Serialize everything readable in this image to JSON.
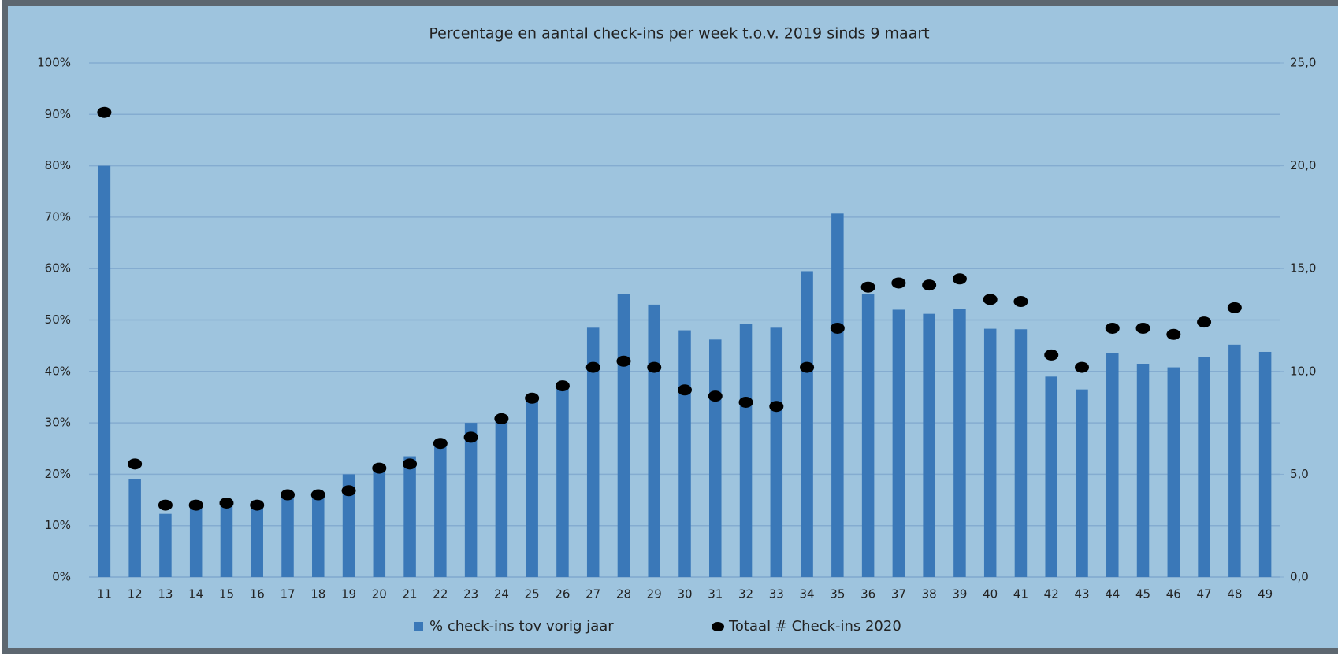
{
  "chart_data": {
    "type": "bar",
    "title": "Percentage en aantal check-ins per week t.o.v. 2019 sinds 9 maart",
    "categories": [
      "11",
      "12",
      "13",
      "14",
      "15",
      "16",
      "17",
      "18",
      "19",
      "20",
      "21",
      "22",
      "23",
      "24",
      "25",
      "26",
      "27",
      "28",
      "29",
      "30",
      "31",
      "32",
      "33",
      "34",
      "35",
      "36",
      "37",
      "38",
      "39",
      "40",
      "41",
      "42",
      "43",
      "44",
      "45",
      "46",
      "47",
      "48",
      "49"
    ],
    "series": [
      {
        "name": "% check-ins tov vorig jaar",
        "type": "bar",
        "color": "#3a78b8",
        "values": [
          80,
          19,
          12.3,
          14,
          14,
          13.5,
          16,
          16,
          20,
          21,
          23.5,
          26,
          30,
          30.5,
          34.5,
          37.5,
          48.5,
          55,
          53,
          48,
          46.2,
          49.3,
          48.5,
          59.5,
          70.7,
          55,
          52,
          51.2,
          52.2,
          48.3,
          48.2,
          39,
          36.5,
          43.5,
          41.5,
          40.8,
          42.8,
          45.2,
          43.8
        ]
      },
      {
        "name": "Totaal # Check-ins 2020",
        "type": "scatter",
        "axis": "y2",
        "color": "#000000",
        "values": [
          22.6,
          5.5,
          3.5,
          3.5,
          3.6,
          3.5,
          4.0,
          4.0,
          4.2,
          5.3,
          5.5,
          6.5,
          6.8,
          7.7,
          8.7,
          9.3,
          10.2,
          10.5,
          10.2,
          9.1,
          8.8,
          8.5,
          8.3,
          10.2,
          12.1,
          14.1,
          14.3,
          14.2,
          14.5,
          13.5,
          13.4,
          10.8,
          10.2,
          12.1,
          12.1,
          11.8,
          12.4,
          13.1,
          null
        ]
      }
    ],
    "ylim": [
      0,
      100
    ],
    "yticks": [
      {
        "value": 0,
        "label": "0%"
      },
      {
        "value": 10,
        "label": "10%"
      },
      {
        "value": 20,
        "label": "20%"
      },
      {
        "value": 30,
        "label": "30%"
      },
      {
        "value": 40,
        "label": "40%"
      },
      {
        "value": 50,
        "label": "50%"
      },
      {
        "value": 60,
        "label": "60%"
      },
      {
        "value": 70,
        "label": "70%"
      },
      {
        "value": 80,
        "label": "80%"
      },
      {
        "value": 90,
        "label": "90%"
      },
      {
        "value": 100,
        "label": "100%"
      }
    ],
    "y2lim": [
      0,
      25
    ],
    "y2ticks": [
      {
        "value": 0,
        "label": "0,0"
      },
      {
        "value": 5,
        "label": "5,0"
      },
      {
        "value": 10,
        "label": "10,0"
      },
      {
        "value": 15,
        "label": "15,0"
      },
      {
        "value": 20,
        "label": "20,0"
      },
      {
        "value": 25,
        "label": "25,0"
      }
    ],
    "grid": true,
    "legend": "bottom"
  }
}
